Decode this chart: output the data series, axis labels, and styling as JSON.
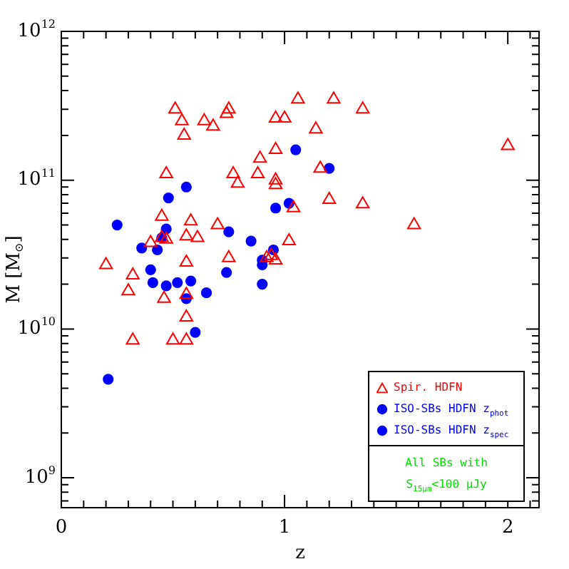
{
  "chart_data": {
    "type": "scatter",
    "xlabel": "z",
    "ylabel": "M [M$_{⊙}$]",
    "log": "y",
    "grid": false,
    "legend": "bottom right",
    "xlim": [
      0,
      2.14
    ],
    "ylim": [
      630000000.0,
      1000000000000.0
    ],
    "xticks": [
      0,
      {
        "value": 0.1,
        "label": null
      },
      {
        "value": 0.2,
        "label": null
      },
      {
        "value": 0.3,
        "label": null
      },
      {
        "value": 0.4,
        "label": null
      },
      {
        "value": 0.5,
        "label": null
      },
      {
        "value": 0.6,
        "label": null
      },
      {
        "value": 0.7,
        "label": null
      },
      {
        "value": 0.8,
        "label": null
      },
      {
        "value": 0.9,
        "label": null
      },
      1,
      {
        "value": 1.1,
        "label": null
      },
      {
        "value": 1.2,
        "label": null
      },
      {
        "value": 1.3,
        "label": null
      },
      {
        "value": 1.4,
        "label": null
      },
      {
        "value": 1.5,
        "label": null
      },
      {
        "value": 1.6,
        "label": null
      },
      {
        "value": 1.7,
        "label": null
      },
      {
        "value": 1.8,
        "label": null
      },
      {
        "value": 1.9,
        "label": null
      },
      2,
      {
        "value": 2.1,
        "label": null
      }
    ],
    "yticks": [
      {
        "value": 700000000.0,
        "label": null
      },
      {
        "value": 800000000.0,
        "label": null
      },
      {
        "value": 900000000.0,
        "label": null
      },
      {
        "value": 1000000000.0,
        "label": "10$^{9}$"
      },
      {
        "value": 2000000000.0,
        "label": null
      },
      {
        "value": 3000000000.0,
        "label": null
      },
      {
        "value": 4000000000.0,
        "label": null
      },
      {
        "value": 5000000000.0,
        "label": null
      },
      {
        "value": 6000000000.0,
        "label": null
      },
      {
        "value": 7000000000.0,
        "label": null
      },
      {
        "value": 8000000000.0,
        "label": null
      },
      {
        "value": 9000000000.0,
        "label": null
      },
      {
        "value": 10000000000.0,
        "label": "10$^{10}$"
      },
      {
        "value": 20000000000.0,
        "label": null
      },
      {
        "value": 30000000000.0,
        "label": null
      },
      {
        "value": 40000000000.0,
        "label": null
      },
      {
        "value": 50000000000.0,
        "label": null
      },
      {
        "value": 60000000000.0,
        "label": null
      },
      {
        "value": 70000000000.0,
        "label": null
      },
      {
        "value": 80000000000.0,
        "label": null
      },
      {
        "value": 90000000000.0,
        "label": null
      },
      {
        "value": 100000000000.0,
        "label": "10$^{11}$"
      },
      {
        "value": 200000000000.0,
        "label": null
      },
      {
        "value": 300000000000.0,
        "label": null
      },
      {
        "value": 400000000000.0,
        "label": null
      },
      {
        "value": 500000000000.0,
        "label": null
      },
      {
        "value": 600000000000.0,
        "label": null
      },
      {
        "value": 700000000000.0,
        "label": null
      },
      {
        "value": 800000000000.0,
        "label": null
      },
      {
        "value": 900000000000.0,
        "label": null
      },
      {
        "value": 1000000000000.0,
        "label": "10$^{12}$"
      }
    ],
    "annotations": [
      "All SBs with S$_{15μm}$<100 μJy"
    ],
    "series": [
      {
        "name": "Spir. HDFN",
        "color": "#ff0000",
        "marker": "triangle",
        "x": [
          0.51,
          0.54,
          0.55,
          0.64,
          0.68,
          0.74,
          0.75,
          0.89,
          0.96,
          1.0,
          0.96,
          1.06,
          1.22,
          1.14,
          1.35,
          2.0,
          1.16,
          0.47,
          0.77,
          0.88,
          0.79,
          0.96,
          0.96,
          1.04,
          1.2,
          1.35,
          1.58,
          0.45,
          0.58,
          0.7,
          0.4,
          0.45,
          0.47,
          0.56,
          0.61,
          1.02,
          0.75,
          0.56,
          0.2,
          0.32,
          0.92,
          0.94,
          0.96,
          0.3,
          0.46,
          0.56,
          0.56,
          0.32,
          0.5,
          0.56
        ],
        "values": [
          300000000000.0,
          250000000000.0,
          200000000000.0,
          250000000000.0,
          230000000000.0,
          280000000000.0,
          300000000000.0,
          140000000000.0,
          260000000000.0,
          260000000000.0,
          160000000000.0,
          350000000000.0,
          350000000000.0,
          220000000000.0,
          300000000000.0,
          170000000000.0,
          120000000000.0,
          110000000000.0,
          110000000000.0,
          110000000000.0,
          95000000000.0,
          100000000000.0,
          93000000000.0,
          65000000000.0,
          74000000000.0,
          69000000000.0,
          50000000000.0,
          57000000000.0,
          53000000000.0,
          50000000000.0,
          38000000000.0,
          41000000000.0,
          40000000000.0,
          42000000000.0,
          41000000000.0,
          39000000000.0,
          30000000000.0,
          28000000000.0,
          27000000000.0,
          23000000000.0,
          30000000000.0,
          31000000000.0,
          29000000000.0,
          18000000000.0,
          16000000000.0,
          17000000000.0,
          12000000000.0,
          8400000000.0,
          8400000000.0,
          8400000000.0
        ]
      },
      {
        "name": "ISO-SBs HDFN z$_{phot}$",
        "color": "#0000ff",
        "marker": "circle",
        "x": [
          1.05,
          1.2,
          0.96,
          1.02,
          0.9,
          0.47,
          0.52
        ],
        "values": [
          160000000000.0,
          120000000000.0,
          65000000000.0,
          70000000000.0,
          20000000000.0,
          19500000000.0,
          20500000000.0
        ]
      },
      {
        "name": "ISO-SBs HDFN z$_{spec}$",
        "color": "#0000ff",
        "marker": "circle",
        "x": [
          0.25,
          0.36,
          0.43,
          0.47,
          0.45,
          0.48,
          0.56,
          0.75,
          0.85,
          0.95,
          0.4,
          0.41,
          0.58,
          0.56,
          0.65,
          0.74,
          0.9,
          0.9,
          0.6,
          0.21
        ],
        "values": [
          50000000000.0,
          35000000000.0,
          34000000000.0,
          47000000000.0,
          41000000000.0,
          76000000000.0,
          90000000000.0,
          45000000000.0,
          39000000000.0,
          34000000000.0,
          25000000000.0,
          20500000000.0,
          21000000000.0,
          16000000000.0,
          17500000000.0,
          24000000000.0,
          29000000000.0,
          27000000000.0,
          9500000000.0,
          4600000000.0
        ]
      }
    ]
  }
}
